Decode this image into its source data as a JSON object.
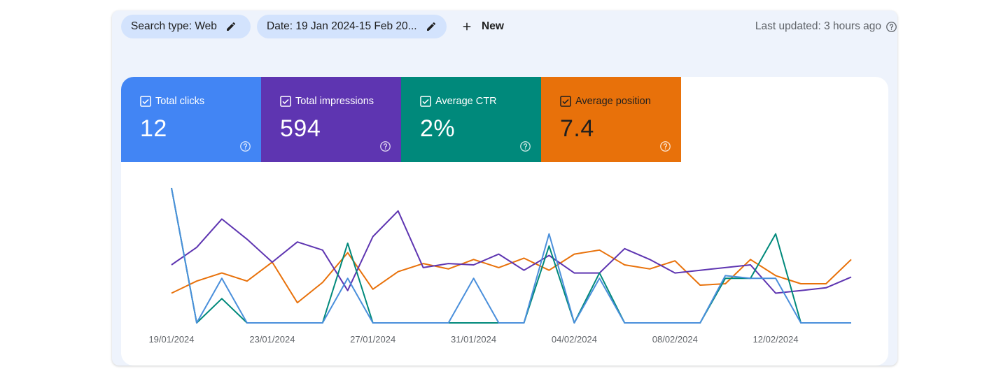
{
  "filters": {
    "search_type": "Search type: Web",
    "date": "Date: 19 Jan 2024-15 Feb 20...",
    "new_label": "New",
    "edit_icon": "pencil-icon",
    "add_icon": "plus-icon"
  },
  "last_updated": "Last updated: 3 hours ago",
  "metrics": [
    {
      "label": "Total clicks",
      "value": "12",
      "color": "#4285f4",
      "checked": true
    },
    {
      "label": "Total impressions",
      "value": "594",
      "color": "#5e35b1",
      "checked": true
    },
    {
      "label": "Average CTR",
      "value": "2%",
      "color": "#00897b",
      "checked": true
    },
    {
      "label": "Average position",
      "value": "7.4",
      "color": "#e8710a",
      "checked": true
    }
  ],
  "chart_data": {
    "type": "line",
    "x": [
      "19/01/2024",
      "20/01/2024",
      "21/01/2024",
      "22/01/2024",
      "23/01/2024",
      "24/01/2024",
      "25/01/2024",
      "26/01/2024",
      "27/01/2024",
      "28/01/2024",
      "29/01/2024",
      "30/01/2024",
      "31/01/2024",
      "01/02/2024",
      "02/02/2024",
      "03/02/2024",
      "04/02/2024",
      "05/02/2024",
      "06/02/2024",
      "07/02/2024",
      "08/02/2024",
      "09/02/2024",
      "10/02/2024",
      "11/02/2024",
      "12/02/2024",
      "13/02/2024",
      "14/02/2024",
      "15/02/2024"
    ],
    "tick_labels": [
      "19/01/2024",
      "23/01/2024",
      "27/01/2024",
      "31/01/2024",
      "04/02/2024",
      "08/02/2024",
      "12/02/2024"
    ],
    "grid": false,
    "legend": "none",
    "series": [
      {
        "name": "Average position",
        "color": "#e8710a",
        "values": [
          0.22,
          0.31,
          0.37,
          0.31,
          0.45,
          0.15,
          0.3,
          0.52,
          0.25,
          0.38,
          0.44,
          0.4,
          0.47,
          0.41,
          0.48,
          0.39,
          0.51,
          0.54,
          0.43,
          0.4,
          0.46,
          0.28,
          0.29,
          0.47,
          0.35,
          0.29,
          0.29,
          0.47
        ]
      },
      {
        "name": "Total impressions",
        "color": "#5e35b1",
        "values": [
          0.43,
          0.56,
          0.77,
          0.62,
          0.45,
          0.6,
          0.54,
          0.24,
          0.64,
          0.83,
          0.41,
          0.44,
          0.43,
          0.51,
          0.39,
          0.5,
          0.37,
          0.37,
          0.55,
          0.47,
          0.37,
          0.39,
          0.41,
          0.43,
          0.22,
          0.24,
          0.26,
          0.34
        ]
      },
      {
        "name": "Average CTR",
        "color": "#00897b",
        "values": [
          1.0,
          0.0,
          0.18,
          0.0,
          0.0,
          0.0,
          0.0,
          0.59,
          0.0,
          0.0,
          0.0,
          0.0,
          0.0,
          0.0,
          0.0,
          0.57,
          0.0,
          0.37,
          0.0,
          0.0,
          0.0,
          0.0,
          0.33,
          0.33,
          0.66,
          0.0,
          0.0,
          0.0
        ]
      },
      {
        "name": "Total clicks",
        "color": "#4a8fdb",
        "values": [
          1.0,
          0.0,
          0.33,
          0.0,
          0.0,
          0.0,
          0.0,
          0.33,
          0.0,
          0.0,
          0.0,
          0.0,
          0.33,
          0.0,
          0.0,
          0.66,
          0.0,
          0.33,
          0.0,
          0.0,
          0.0,
          0.0,
          0.35,
          0.33,
          0.33,
          0.0,
          0.0,
          0.0
        ]
      }
    ]
  }
}
